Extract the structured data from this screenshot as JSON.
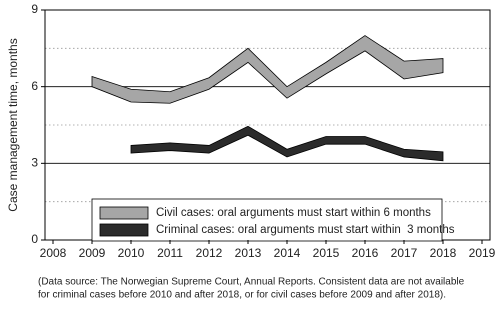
{
  "chart_data": {
    "type": "band",
    "y_label": "Case management time, months",
    "x": [
      2009,
      2010,
      2011,
      2012,
      2013,
      2014,
      2015,
      2016,
      2017,
      2018
    ],
    "xlim": [
      2008,
      2019
    ],
    "xticks": [
      2008,
      2009,
      2010,
      2011,
      2012,
      2013,
      2014,
      2015,
      2016,
      2017,
      2018,
      2019
    ],
    "ylim": [
      0,
      9
    ],
    "yticks": [
      0,
      3,
      6,
      9
    ],
    "minor_grid": [
      1.5,
      4.5,
      7.5
    ],
    "grid": true,
    "series": [
      {
        "name": "Civil cases: oral arguments must start within 6 months",
        "color": "#a6a6a6",
        "upper": [
          6.4,
          5.9,
          5.8,
          6.35,
          7.5,
          6.0,
          6.95,
          8.0,
          7.0,
          7.1
        ],
        "lower": [
          6.0,
          5.4,
          5.35,
          5.9,
          6.95,
          5.55,
          6.5,
          7.4,
          6.3,
          6.55
        ]
      },
      {
        "name": "Criminal cases: oral arguments must start within  3 months",
        "color": "#2b2b2b",
        "upper": [
          null,
          3.7,
          3.8,
          3.7,
          4.45,
          3.55,
          4.05,
          4.05,
          3.55,
          3.45
        ],
        "lower": [
          null,
          3.4,
          3.5,
          3.4,
          4.1,
          3.25,
          3.75,
          3.75,
          3.25,
          3.1
        ]
      }
    ],
    "note": [
      "(Data source: The Norwegian Supreme Court, Annual Reports. Consistent data are not available",
      "for criminal cases before 2010 and after 2018, or for civil cases before 2009 and after 2018)."
    ]
  }
}
